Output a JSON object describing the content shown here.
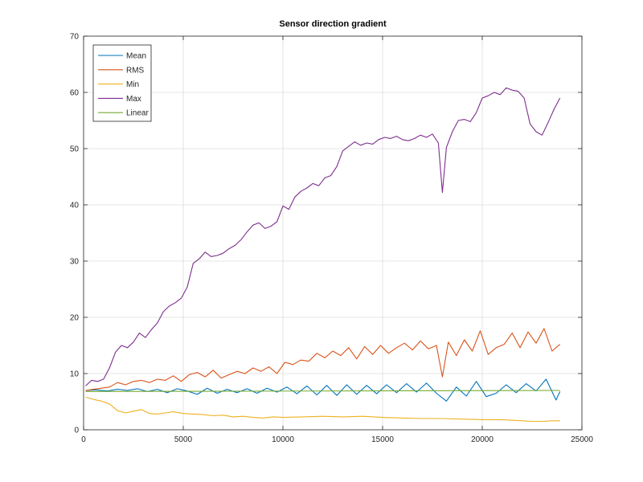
{
  "chart_data": {
    "type": "line",
    "title": "Sensor direction gradient",
    "xlabel": "",
    "ylabel": "",
    "xlim": [
      0,
      25000
    ],
    "ylim": [
      0,
      70
    ],
    "xticks": [
      0,
      5000,
      10000,
      15000,
      20000,
      25000
    ],
    "yticks": [
      0,
      10,
      20,
      30,
      40,
      50,
      60,
      70
    ],
    "grid": true,
    "legend_position": "top-left",
    "series": [
      {
        "name": "Mean",
        "color": "#0072BD",
        "x": [
          100,
          600,
          1200,
          1700,
          2200,
          2700,
          3200,
          3700,
          4200,
          4700,
          5200,
          5700,
          6200,
          6700,
          7200,
          7700,
          8200,
          8700,
          9200,
          9700,
          10200,
          10700,
          11200,
          11700,
          12200,
          12700,
          13200,
          13700,
          14200,
          14700,
          15200,
          15700,
          16200,
          16700,
          17200,
          17700,
          18200,
          18700,
          19200,
          19700,
          20200,
          20700,
          21200,
          21700,
          22200,
          22700,
          23200,
          23700,
          23900
        ],
        "y": [
          7.0,
          7.1,
          6.9,
          7.2,
          7.0,
          7.3,
          6.8,
          7.2,
          6.6,
          7.3,
          6.9,
          6.3,
          7.4,
          6.5,
          7.2,
          6.6,
          7.3,
          6.5,
          7.4,
          6.7,
          7.6,
          6.4,
          7.8,
          6.2,
          7.9,
          6.1,
          8.0,
          6.3,
          7.9,
          6.4,
          8.0,
          6.6,
          8.2,
          6.7,
          8.3,
          6.5,
          5.1,
          7.6,
          6.0,
          8.6,
          5.9,
          6.5,
          8.0,
          6.6,
          8.2,
          6.9,
          9.0,
          5.3,
          6.8
        ]
      },
      {
        "name": "RMS",
        "color": "#D95319",
        "x": [
          100,
          500,
          900,
          1300,
          1700,
          2100,
          2500,
          2900,
          3300,
          3700,
          4100,
          4500,
          4900,
          5300,
          5700,
          6100,
          6500,
          6900,
          7300,
          7700,
          8100,
          8500,
          8900,
          9300,
          9700,
          10100,
          10500,
          10900,
          11300,
          11700,
          12100,
          12500,
          12900,
          13300,
          13700,
          14100,
          14500,
          14900,
          15300,
          15700,
          16100,
          16500,
          16900,
          17300,
          17700,
          18000,
          18300,
          18700,
          19100,
          19500,
          19900,
          20300,
          20700,
          21100,
          21500,
          21900,
          22300,
          22700,
          23100,
          23500,
          23900
        ],
        "y": [
          7.0,
          7.2,
          7.4,
          7.6,
          8.4,
          8.0,
          8.6,
          8.8,
          8.4,
          9.0,
          8.8,
          9.6,
          8.6,
          9.8,
          10.2,
          9.4,
          10.6,
          9.2,
          9.8,
          10.4,
          10.0,
          11.0,
          10.4,
          11.2,
          10.0,
          12.0,
          11.6,
          12.4,
          12.2,
          13.6,
          12.8,
          14.0,
          13.2,
          14.6,
          12.6,
          14.8,
          13.4,
          15.0,
          13.6,
          14.6,
          15.4,
          14.2,
          15.8,
          14.4,
          15.0,
          9.4,
          15.6,
          13.2,
          16.0,
          14.0,
          17.6,
          13.4,
          14.6,
          15.2,
          17.2,
          14.6,
          17.4,
          15.4,
          18.0,
          14.0,
          15.2
        ]
      },
      {
        "name": "Min",
        "color": "#EDB120",
        "x": [
          100,
          500,
          900,
          1300,
          1700,
          2100,
          2500,
          2900,
          3300,
          3700,
          4100,
          4500,
          5000,
          5500,
          6000,
          6500,
          7000,
          7500,
          8000,
          8500,
          9000,
          9500,
          10000,
          11000,
          12000,
          13000,
          14000,
          15000,
          16000,
          17000,
          18000,
          19000,
          20000,
          21000,
          22000,
          22500,
          23000,
          23500,
          23900
        ],
        "y": [
          5.8,
          5.4,
          5.1,
          4.6,
          3.4,
          3.0,
          3.3,
          3.6,
          2.9,
          2.8,
          3.0,
          3.2,
          2.9,
          2.8,
          2.7,
          2.5,
          2.6,
          2.3,
          2.4,
          2.2,
          2.1,
          2.3,
          2.2,
          2.3,
          2.4,
          2.3,
          2.4,
          2.2,
          2.1,
          2.0,
          2.0,
          1.9,
          1.8,
          1.8,
          1.6,
          1.5,
          1.5,
          1.6,
          1.6
        ]
      },
      {
        "name": "Max",
        "color": "#7E2F8E",
        "x": [
          100,
          400,
          700,
          1000,
          1300,
          1600,
          1900,
          2200,
          2500,
          2800,
          3100,
          3400,
          3700,
          4000,
          4300,
          4600,
          4900,
          5200,
          5500,
          5800,
          6100,
          6400,
          6700,
          7000,
          7300,
          7600,
          7900,
          8200,
          8500,
          8800,
          9100,
          9400,
          9700,
          10000,
          10300,
          10600,
          10900,
          11200,
          11500,
          11800,
          12100,
          12400,
          12700,
          13000,
          13300,
          13600,
          13900,
          14200,
          14500,
          14800,
          15100,
          15400,
          15700,
          16000,
          16300,
          16600,
          16900,
          17200,
          17500,
          17800,
          18000,
          18200,
          18500,
          18800,
          19100,
          19400,
          19700,
          20000,
          20300,
          20600,
          20900,
          21200,
          21500,
          21800,
          22100,
          22400,
          22700,
          23000,
          23300,
          23600,
          23900
        ],
        "y": [
          7.8,
          8.8,
          8.6,
          9.0,
          11.0,
          13.8,
          15.0,
          14.6,
          15.6,
          17.2,
          16.4,
          17.8,
          19.0,
          21.0,
          22.0,
          22.6,
          23.4,
          25.4,
          29.6,
          30.4,
          31.6,
          30.8,
          31.0,
          31.4,
          32.2,
          32.8,
          33.8,
          35.2,
          36.4,
          36.8,
          35.8,
          36.2,
          37.0,
          39.8,
          39.2,
          41.4,
          42.4,
          43.0,
          43.8,
          43.4,
          44.8,
          45.2,
          46.8,
          49.6,
          50.4,
          51.2,
          50.6,
          51.0,
          50.8,
          51.6,
          52.0,
          51.8,
          52.2,
          51.6,
          51.4,
          51.8,
          52.4,
          52.0,
          52.6,
          51.0,
          42.2,
          50.2,
          53.0,
          55.0,
          55.2,
          54.8,
          56.4,
          59.0,
          59.4,
          60.0,
          59.6,
          60.8,
          60.4,
          60.2,
          59.0,
          54.4,
          53.0,
          52.4,
          54.6,
          57.0,
          59.0
        ]
      },
      {
        "name": "Linear",
        "color": "#77AC30",
        "x": [
          100,
          23900
        ],
        "y": [
          6.8,
          7.0
        ]
      }
    ]
  }
}
